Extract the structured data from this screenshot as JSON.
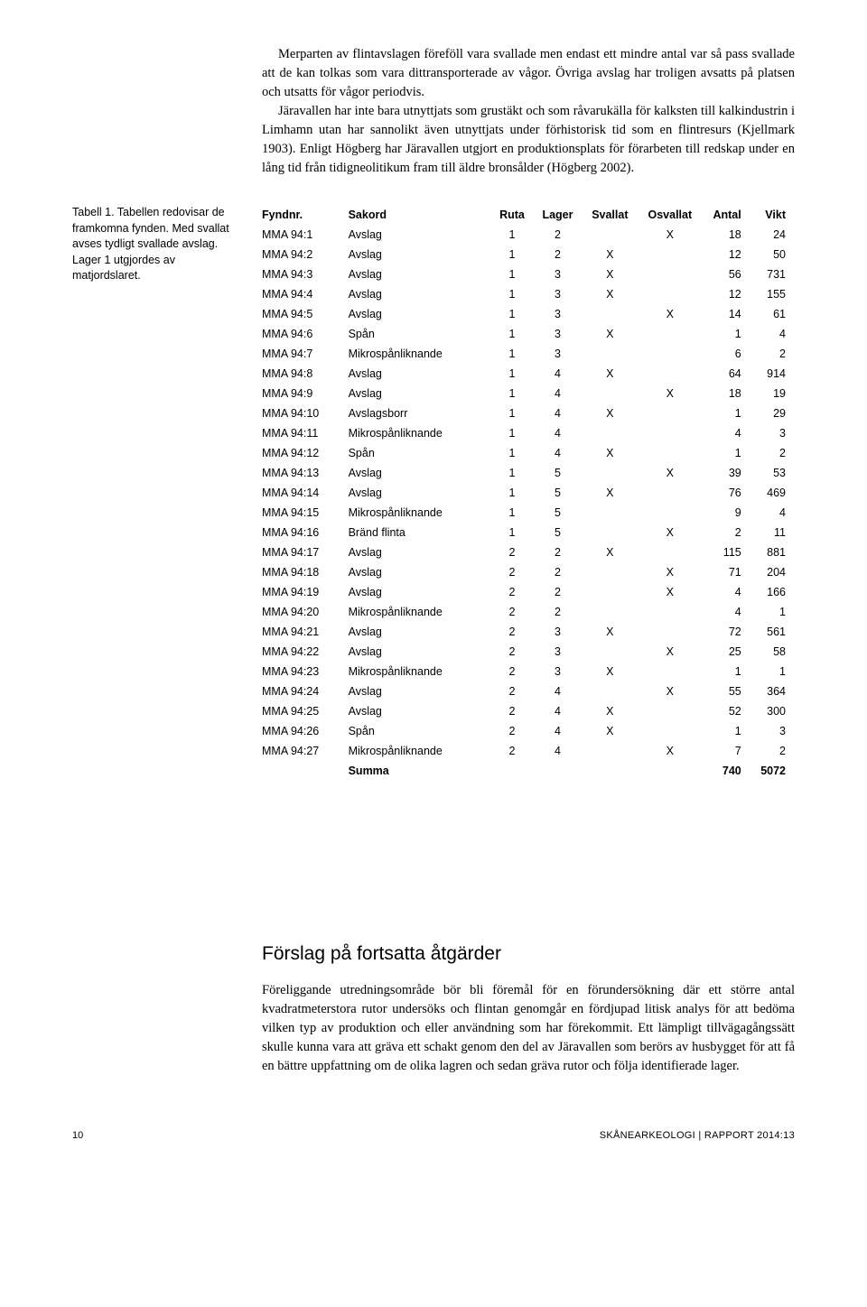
{
  "body": {
    "p1": "Merparten av flintavslagen föreföll vara svallade men endast ett mindre antal var så pass svallade att de kan tolkas som vara dittransporterade av vågor. Övriga avslag har troligen avsatts på platsen och utsatts för vågor periodvis.",
    "p2": "Järavallen har inte bara utnyttjats som grustäkt och som råvarukälla för kalksten till kalkindustrin i Limhamn utan har sannolikt även utnyttjats under förhistorisk tid som en flintresurs (Kjellmark 1903). Enligt Högberg har Järavallen utgjort en produktionsplats för förarbeten till redskap under en lång tid från tidigneolitikum fram till äldre bronsålder (Högberg 2002)."
  },
  "caption": "Tabell 1. Tabellen redovisar de framkomna fynden. Med svallat avses tydligt svallade avslag. Lager 1 utgjordes av matjordslaret.",
  "table": {
    "headers": [
      "Fyndnr.",
      "Sakord",
      "Ruta",
      "Lager",
      "Svallat",
      "Osvallat",
      "Antal",
      "Vikt"
    ],
    "rows": [
      {
        "fyndnr": "MMA 94:1",
        "sakord": "Avslag",
        "ruta": "1",
        "lager": "2",
        "svallat": "",
        "osvallat": "X",
        "antal": "18",
        "vikt": "24"
      },
      {
        "fyndnr": "MMA 94:2",
        "sakord": "Avslag",
        "ruta": "1",
        "lager": "2",
        "svallat": "X",
        "osvallat": "",
        "antal": "12",
        "vikt": "50"
      },
      {
        "fyndnr": "MMA 94:3",
        "sakord": "Avslag",
        "ruta": "1",
        "lager": "3",
        "svallat": "X",
        "osvallat": "",
        "antal": "56",
        "vikt": "731"
      },
      {
        "fyndnr": "MMA 94:4",
        "sakord": "Avslag",
        "ruta": "1",
        "lager": "3",
        "svallat": "X",
        "osvallat": "",
        "antal": "12",
        "vikt": "155"
      },
      {
        "fyndnr": "MMA 94:5",
        "sakord": "Avslag",
        "ruta": "1",
        "lager": "3",
        "svallat": "",
        "osvallat": "X",
        "antal": "14",
        "vikt": "61"
      },
      {
        "fyndnr": "MMA 94:6",
        "sakord": "Spån",
        "ruta": "1",
        "lager": "3",
        "svallat": "X",
        "osvallat": "",
        "antal": "1",
        "vikt": "4"
      },
      {
        "fyndnr": "MMA 94:7",
        "sakord": "Mikrospånliknande",
        "ruta": "1",
        "lager": "3",
        "svallat": "",
        "osvallat": "",
        "antal": "6",
        "vikt": "2"
      },
      {
        "fyndnr": "MMA 94:8",
        "sakord": "Avslag",
        "ruta": "1",
        "lager": "4",
        "svallat": "X",
        "osvallat": "",
        "antal": "64",
        "vikt": "914"
      },
      {
        "fyndnr": "MMA 94:9",
        "sakord": "Avslag",
        "ruta": "1",
        "lager": "4",
        "svallat": "",
        "osvallat": "X",
        "antal": "18",
        "vikt": "19"
      },
      {
        "fyndnr": "MMA 94:10",
        "sakord": "Avslagsborr",
        "ruta": "1",
        "lager": "4",
        "svallat": "X",
        "osvallat": "",
        "antal": "1",
        "vikt": "29"
      },
      {
        "fyndnr": "MMA 94:11",
        "sakord": "Mikrospånliknande",
        "ruta": "1",
        "lager": "4",
        "svallat": "",
        "osvallat": "",
        "antal": "4",
        "vikt": "3"
      },
      {
        "fyndnr": "MMA 94:12",
        "sakord": "Spån",
        "ruta": "1",
        "lager": "4",
        "svallat": "X",
        "osvallat": "",
        "antal": "1",
        "vikt": "2"
      },
      {
        "fyndnr": "MMA 94:13",
        "sakord": "Avslag",
        "ruta": "1",
        "lager": "5",
        "svallat": "",
        "osvallat": "X",
        "antal": "39",
        "vikt": "53"
      },
      {
        "fyndnr": "MMA 94:14",
        "sakord": "Avslag",
        "ruta": "1",
        "lager": "5",
        "svallat": "X",
        "osvallat": "",
        "antal": "76",
        "vikt": "469"
      },
      {
        "fyndnr": "MMA 94:15",
        "sakord": "Mikrospånliknande",
        "ruta": "1",
        "lager": "5",
        "svallat": "",
        "osvallat": "",
        "antal": "9",
        "vikt": "4"
      },
      {
        "fyndnr": "MMA 94:16",
        "sakord": "Bränd flinta",
        "ruta": "1",
        "lager": "5",
        "svallat": "",
        "osvallat": "X",
        "antal": "2",
        "vikt": "11"
      },
      {
        "fyndnr": "MMA 94:17",
        "sakord": "Avslag",
        "ruta": "2",
        "lager": "2",
        "svallat": "X",
        "osvallat": "",
        "antal": "115",
        "vikt": "881"
      },
      {
        "fyndnr": "MMA 94:18",
        "sakord": "Avslag",
        "ruta": "2",
        "lager": "2",
        "svallat": "",
        "osvallat": "X",
        "antal": "71",
        "vikt": "204"
      },
      {
        "fyndnr": "MMA 94:19",
        "sakord": "Avslag",
        "ruta": "2",
        "lager": "2",
        "svallat": "",
        "osvallat": "X",
        "antal": "4",
        "vikt": "166"
      },
      {
        "fyndnr": "MMA 94:20",
        "sakord": "Mikrospånliknande",
        "ruta": "2",
        "lager": "2",
        "svallat": "",
        "osvallat": "",
        "antal": "4",
        "vikt": "1"
      },
      {
        "fyndnr": "MMA 94:21",
        "sakord": "Avslag",
        "ruta": "2",
        "lager": "3",
        "svallat": "X",
        "osvallat": "",
        "antal": "72",
        "vikt": "561"
      },
      {
        "fyndnr": "MMA 94:22",
        "sakord": "Avslag",
        "ruta": "2",
        "lager": "3",
        "svallat": "",
        "osvallat": "X",
        "antal": "25",
        "vikt": "58"
      },
      {
        "fyndnr": "MMA 94:23",
        "sakord": "Mikrospånliknande",
        "ruta": "2",
        "lager": "3",
        "svallat": "X",
        "osvallat": "",
        "antal": "1",
        "vikt": "1"
      },
      {
        "fyndnr": "MMA 94:24",
        "sakord": "Avslag",
        "ruta": "2",
        "lager": "4",
        "svallat": "",
        "osvallat": "X",
        "antal": "55",
        "vikt": "364"
      },
      {
        "fyndnr": "MMA 94:25",
        "sakord": "Avslag",
        "ruta": "2",
        "lager": "4",
        "svallat": "X",
        "osvallat": "",
        "antal": "52",
        "vikt": "300"
      },
      {
        "fyndnr": "MMA 94:26",
        "sakord": "Spån",
        "ruta": "2",
        "lager": "4",
        "svallat": "X",
        "osvallat": "",
        "antal": "1",
        "vikt": "3"
      },
      {
        "fyndnr": "MMA 94:27",
        "sakord": "Mikrospånliknande",
        "ruta": "2",
        "lager": "4",
        "svallat": "",
        "osvallat": "X",
        "antal": "7",
        "vikt": "2"
      }
    ],
    "sum": {
      "label": "Summa",
      "antal": "740",
      "vikt": "5072"
    }
  },
  "heading2": "Förslag på fortsatta åtgärder",
  "closing": "Föreliggande utredningsområde bör bli föremål för en förundersökning där ett större antal kvadratmeterstora rutor undersöks och flintan genomgår en fördjupad litisk analys för att bedöma vilken typ av produktion och eller användning som har förekommit. Ett lämpligt tillvägagångssätt skulle kunna vara att gräva ett schakt genom den del av Järavallen som berörs av husbygget för att få en bättre uppfattning om de olika lagren och sedan gräva rutor och följa identifierade lager.",
  "footer": {
    "page": "10",
    "ref": "SKÅNEARKEOLOGI | RAPPORT 2014:13"
  }
}
